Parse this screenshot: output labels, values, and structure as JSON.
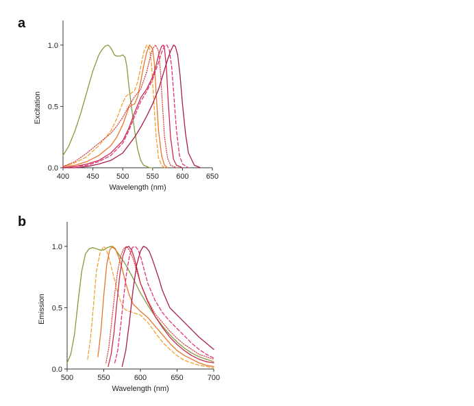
{
  "chart_data": [
    {
      "type": "line",
      "panel_label": "a",
      "xlabel": "Wavelength (nm)",
      "ylabel": "Excitation",
      "xlim": [
        400,
        650
      ],
      "ylim": [
        0,
        1.2
      ],
      "xticks": [
        "400",
        "450",
        "500",
        "550",
        "600",
        "650"
      ],
      "yticks": [
        "0.0",
        "0.5",
        "1.0"
      ],
      "grid": false,
      "series": [
        {
          "color": "#7f9a3c",
          "dash": "solid",
          "x": [
            400,
            410,
            420,
            430,
            440,
            450,
            460,
            465,
            470,
            475,
            478,
            482,
            486,
            490,
            495,
            500,
            504,
            507,
            510,
            515,
            520,
            525,
            530,
            535,
            540,
            545,
            550
          ],
          "y": [
            0.1,
            0.18,
            0.3,
            0.45,
            0.62,
            0.79,
            0.92,
            0.96,
            0.99,
            1.0,
            0.99,
            0.96,
            0.92,
            0.91,
            0.91,
            0.92,
            0.9,
            0.82,
            0.68,
            0.48,
            0.3,
            0.15,
            0.06,
            0.02,
            0.01,
            0.0,
            0.0
          ]
        },
        {
          "color": "#f0a030",
          "dash": "dashed",
          "x": [
            400,
            420,
            440,
            460,
            480,
            490,
            500,
            505,
            510,
            515,
            520,
            525,
            530,
            535,
            540,
            545,
            548,
            552,
            556,
            560,
            565,
            570
          ],
          "y": [
            0.01,
            0.04,
            0.09,
            0.18,
            0.3,
            0.4,
            0.53,
            0.58,
            0.6,
            0.61,
            0.63,
            0.7,
            0.82,
            0.94,
            1.0,
            0.97,
            0.85,
            0.55,
            0.25,
            0.08,
            0.02,
            0.0
          ]
        },
        {
          "color": "#e8742a",
          "dash": "solid",
          "x": [
            400,
            420,
            440,
            460,
            480,
            490,
            500,
            505,
            510,
            515,
            520,
            525,
            530,
            535,
            540,
            545,
            550,
            553,
            556,
            560,
            565,
            570,
            575
          ],
          "y": [
            0.01,
            0.02,
            0.05,
            0.1,
            0.18,
            0.25,
            0.35,
            0.42,
            0.49,
            0.51,
            0.52,
            0.58,
            0.7,
            0.83,
            0.94,
            1.0,
            0.97,
            0.85,
            0.6,
            0.3,
            0.1,
            0.02,
            0.0
          ]
        },
        {
          "color": "#d94040",
          "dash": "dotted",
          "x": [
            400,
            420,
            440,
            460,
            480,
            490,
            500,
            510,
            520,
            530,
            540,
            545,
            550,
            555,
            560,
            563,
            566,
            570,
            575,
            580,
            590
          ],
          "y": [
            0.01,
            0.05,
            0.12,
            0.2,
            0.28,
            0.34,
            0.41,
            0.5,
            0.58,
            0.64,
            0.78,
            0.88,
            0.97,
            1.0,
            0.95,
            0.8,
            0.55,
            0.25,
            0.08,
            0.02,
            0.0
          ]
        },
        {
          "color": "#c8284a",
          "dash": "solid",
          "x": [
            400,
            420,
            440,
            460,
            480,
            500,
            510,
            520,
            530,
            540,
            550,
            555,
            560,
            565,
            568,
            570,
            573,
            576,
            580,
            585,
            590,
            600
          ],
          "y": [
            0.0,
            0.01,
            0.03,
            0.06,
            0.12,
            0.22,
            0.32,
            0.45,
            0.57,
            0.64,
            0.74,
            0.82,
            0.92,
            0.99,
            1.0,
            0.97,
            0.82,
            0.55,
            0.25,
            0.07,
            0.02,
            0.0
          ]
        },
        {
          "color": "#e0307a",
          "dash": "dashed",
          "x": [
            400,
            420,
            440,
            460,
            480,
            500,
            510,
            520,
            530,
            540,
            550,
            560,
            565,
            570,
            574,
            578,
            582,
            586,
            590,
            595,
            600,
            610
          ],
          "y": [
            0.0,
            0.01,
            0.02,
            0.05,
            0.1,
            0.2,
            0.3,
            0.42,
            0.54,
            0.62,
            0.72,
            0.86,
            0.94,
            0.99,
            1.0,
            0.96,
            0.82,
            0.56,
            0.3,
            0.1,
            0.03,
            0.0
          ]
        },
        {
          "color": "#a81a48",
          "dash": "solid",
          "x": [
            400,
            420,
            440,
            460,
            480,
            500,
            520,
            530,
            540,
            550,
            560,
            570,
            575,
            580,
            585,
            588,
            592,
            596,
            600,
            605,
            610,
            620,
            630
          ],
          "y": [
            0.0,
            0.0,
            0.01,
            0.03,
            0.06,
            0.12,
            0.25,
            0.33,
            0.42,
            0.52,
            0.64,
            0.8,
            0.88,
            0.95,
            1.0,
            0.99,
            0.92,
            0.75,
            0.52,
            0.28,
            0.12,
            0.02,
            0.0
          ]
        }
      ]
    },
    {
      "type": "line",
      "panel_label": "b",
      "xlabel": "Wavelength (nm)",
      "ylabel": "Emission",
      "xlim": [
        500,
        700
      ],
      "ylim": [
        0,
        1.2
      ],
      "xticks": [
        "500",
        "550",
        "600",
        "650",
        "700"
      ],
      "yticks": [
        "0.0",
        "0.5",
        "1.0"
      ],
      "grid": false,
      "series": [
        {
          "color": "#7f9a3c",
          "dash": "solid",
          "x": [
            500,
            505,
            510,
            515,
            520,
            525,
            530,
            535,
            540,
            545,
            550,
            555,
            560,
            565,
            570,
            580,
            590,
            600,
            610,
            620,
            630,
            640,
            650,
            660,
            670,
            680,
            690,
            700
          ],
          "y": [
            0.05,
            0.12,
            0.28,
            0.55,
            0.8,
            0.94,
            0.98,
            0.99,
            0.98,
            0.97,
            0.97,
            0.99,
            1.0,
            0.98,
            0.94,
            0.85,
            0.74,
            0.62,
            0.52,
            0.43,
            0.35,
            0.28,
            0.22,
            0.17,
            0.13,
            0.1,
            0.08,
            0.06
          ]
        },
        {
          "color": "#f0a030",
          "dash": "dashed",
          "x": [
            528,
            532,
            536,
            540,
            545,
            550,
            553,
            556,
            560,
            565,
            570,
            575,
            580,
            590,
            600,
            610,
            620,
            630,
            640,
            650,
            660,
            670,
            680,
            690,
            700
          ],
          "y": [
            0.08,
            0.25,
            0.52,
            0.8,
            0.95,
            1.0,
            0.98,
            0.93,
            0.84,
            0.72,
            0.6,
            0.52,
            0.48,
            0.46,
            0.44,
            0.38,
            0.3,
            0.22,
            0.16,
            0.11,
            0.07,
            0.05,
            0.03,
            0.02,
            0.01
          ]
        },
        {
          "color": "#e8742a",
          "dash": "solid",
          "x": [
            542,
            546,
            550,
            554,
            558,
            562,
            566,
            570,
            575,
            580,
            585,
            590,
            600,
            610,
            620,
            630,
            640,
            650,
            660,
            670,
            680,
            690,
            700
          ],
          "y": [
            0.1,
            0.3,
            0.6,
            0.85,
            0.97,
            1.0,
            0.98,
            0.92,
            0.82,
            0.7,
            0.6,
            0.53,
            0.47,
            0.42,
            0.35,
            0.28,
            0.21,
            0.15,
            0.11,
            0.08,
            0.05,
            0.03,
            0.02
          ]
        },
        {
          "color": "#d94040",
          "dash": "dotted",
          "x": [
            553,
            557,
            561,
            565,
            569,
            573,
            577,
            581,
            585,
            590,
            595,
            600,
            610,
            620,
            630,
            640,
            650,
            660,
            670,
            680,
            690,
            700
          ],
          "y": [
            0.05,
            0.18,
            0.4,
            0.62,
            0.8,
            0.92,
            0.98,
            1.0,
            0.97,
            0.9,
            0.8,
            0.7,
            0.56,
            0.45,
            0.38,
            0.31,
            0.25,
            0.2,
            0.16,
            0.12,
            0.1,
            0.08
          ]
        },
        {
          "color": "#c8284a",
          "dash": "solid",
          "x": [
            556,
            560,
            564,
            568,
            572,
            576,
            580,
            584,
            588,
            592,
            596,
            600,
            610,
            620,
            630,
            640,
            650,
            660,
            670,
            680,
            690,
            700
          ],
          "y": [
            0.02,
            0.12,
            0.3,
            0.55,
            0.77,
            0.92,
            0.99,
            1.0,
            0.97,
            0.9,
            0.8,
            0.7,
            0.55,
            0.43,
            0.34,
            0.26,
            0.2,
            0.15,
            0.11,
            0.08,
            0.06,
            0.05
          ]
        },
        {
          "color": "#e0307a",
          "dash": "dashed",
          "x": [
            565,
            569,
            573,
            577,
            581,
            585,
            589,
            593,
            597,
            601,
            605,
            610,
            620,
            630,
            640,
            650,
            660,
            670,
            680,
            690,
            700
          ],
          "y": [
            0.05,
            0.15,
            0.35,
            0.58,
            0.78,
            0.92,
            0.99,
            1.0,
            0.97,
            0.9,
            0.81,
            0.7,
            0.56,
            0.46,
            0.39,
            0.33,
            0.27,
            0.21,
            0.16,
            0.12,
            0.09
          ]
        },
        {
          "color": "#a81a48",
          "dash": "solid",
          "x": [
            575,
            580,
            585,
            590,
            595,
            600,
            604,
            608,
            612,
            616,
            620,
            625,
            630,
            640,
            650,
            660,
            670,
            680,
            690,
            700
          ],
          "y": [
            0.02,
            0.15,
            0.38,
            0.65,
            0.85,
            0.96,
            1.0,
            0.99,
            0.96,
            0.9,
            0.83,
            0.74,
            0.64,
            0.5,
            0.44,
            0.38,
            0.32,
            0.26,
            0.21,
            0.16
          ]
        }
      ]
    }
  ]
}
